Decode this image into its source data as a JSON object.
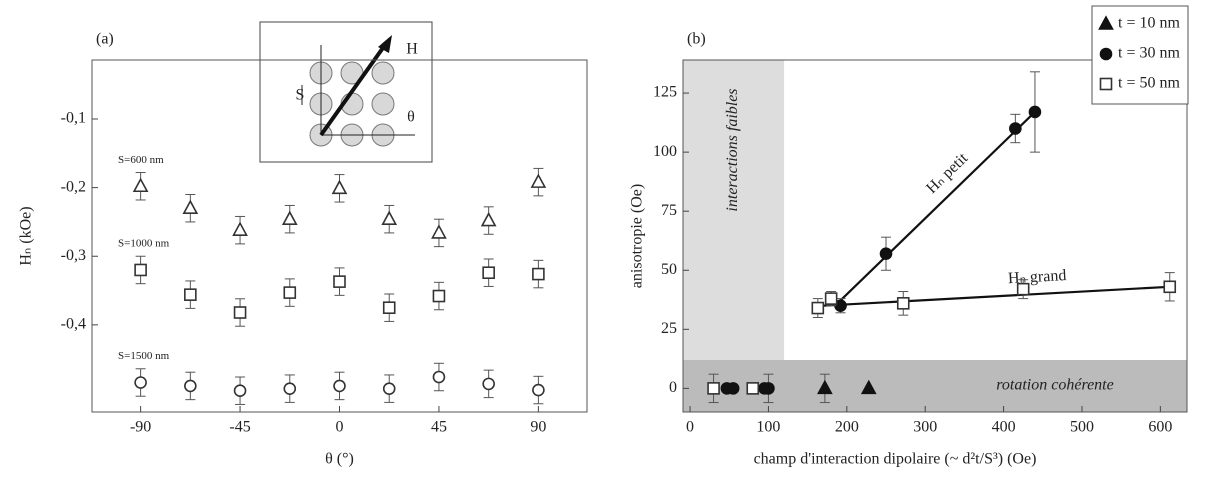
{
  "chart_data": [
    {
      "type": "scatter",
      "panel": "(a)",
      "x_label": "θ (°)",
      "y_label": "Hₙ (kOe)",
      "xlim": [
        -112,
        112
      ],
      "xticks": [
        -90,
        -45,
        0,
        45,
        90
      ],
      "ylim": [
        -0.527,
        -0.014
      ],
      "yticks": [
        {
          "value": -0.1,
          "label": "-0,1"
        },
        {
          "value": -0.2,
          "label": "-0,2"
        },
        {
          "value": -0.3,
          "label": "-0,3"
        },
        {
          "value": -0.4,
          "label": "-0,4"
        }
      ],
      "inset_labels": [
        "S",
        "H",
        "θ"
      ],
      "x": [
        -90,
        -67.5,
        -45,
        -22.5,
        0,
        22.5,
        45,
        67.5,
        90
      ],
      "series": [
        {
          "name": "S=600 nm",
          "marker": "triangle",
          "color": "#333",
          "values": [
            -0.198,
            -0.23,
            -0.262,
            -0.246,
            -0.201,
            -0.246,
            -0.266,
            -0.248,
            -0.192
          ],
          "errors": [
            0.02,
            0.02,
            0.02,
            0.02,
            0.02,
            0.02,
            0.02,
            0.02,
            0.02
          ]
        },
        {
          "name": "S=1000 nm",
          "marker": "square",
          "color": "#333",
          "values": [
            -0.32,
            -0.356,
            -0.382,
            -0.353,
            -0.337,
            -0.375,
            -0.358,
            -0.324,
            -0.326
          ],
          "errors": [
            0.02,
            0.02,
            0.02,
            0.02,
            0.02,
            0.02,
            0.02,
            0.02,
            0.02
          ]
        },
        {
          "name": "S=1500 nm",
          "marker": "circle",
          "color": "#333",
          "values": [
            -0.484,
            -0.489,
            -0.496,
            -0.493,
            -0.489,
            -0.493,
            -0.476,
            -0.486,
            -0.495
          ],
          "errors": [
            0.02,
            0.02,
            0.02,
            0.02,
            0.02,
            0.02,
            0.02,
            0.02,
            0.02
          ]
        }
      ]
    },
    {
      "type": "scatter",
      "panel": "(b)",
      "x_label": "champ d'interaction dipolaire (~ d²t/S³) (Oe)",
      "y_label": "anisotropie (Oe)",
      "xlim": [
        -9,
        634
      ],
      "xticks": [
        0,
        100,
        200,
        300,
        400,
        500,
        600
      ],
      "ylim": [
        -10,
        139
      ],
      "yticks": [
        0,
        25,
        50,
        75,
        100,
        125
      ],
      "regions": [
        {
          "label": "interactions faibles",
          "x": [
            -9,
            120
          ],
          "y": [
            12,
            139
          ],
          "color": "#ddd"
        },
        {
          "label": "rotation cohérente",
          "x": [
            -9,
            634
          ],
          "y": [
            -10,
            12
          ],
          "color": "#bbb"
        }
      ],
      "fits": [
        {
          "label": "Hₙ petit",
          "x": [
            185,
            440
          ],
          "values": [
            35,
            117
          ]
        },
        {
          "label": "Hₙ grand",
          "x": [
            170,
            612
          ],
          "values": [
            35,
            43
          ]
        }
      ],
      "series": [
        {
          "name": "t = 10 nm",
          "marker": "triangle-filled",
          "color": "#111",
          "x": [
            172,
            228
          ],
          "values": [
            0,
            0
          ],
          "errors": [
            6,
            0
          ]
        },
        {
          "name": "t = 30 nm",
          "marker": "dot",
          "color": "#111",
          "x": [
            47,
            55,
            95,
            100,
            192,
            250,
            415,
            440
          ],
          "values": [
            0,
            0,
            0,
            0,
            35,
            57,
            110,
            117
          ],
          "errors": [
            0,
            0,
            0,
            6,
            3,
            7,
            6,
            17
          ]
        },
        {
          "name": "t = 50 nm",
          "marker": "square",
          "color": "#333",
          "x": [
            30,
            80,
            163,
            180,
            272,
            425,
            612
          ],
          "values": [
            0,
            0,
            34,
            38,
            36,
            42,
            43
          ],
          "errors": [
            6,
            0,
            4,
            3,
            5,
            4,
            6
          ]
        }
      ]
    }
  ]
}
